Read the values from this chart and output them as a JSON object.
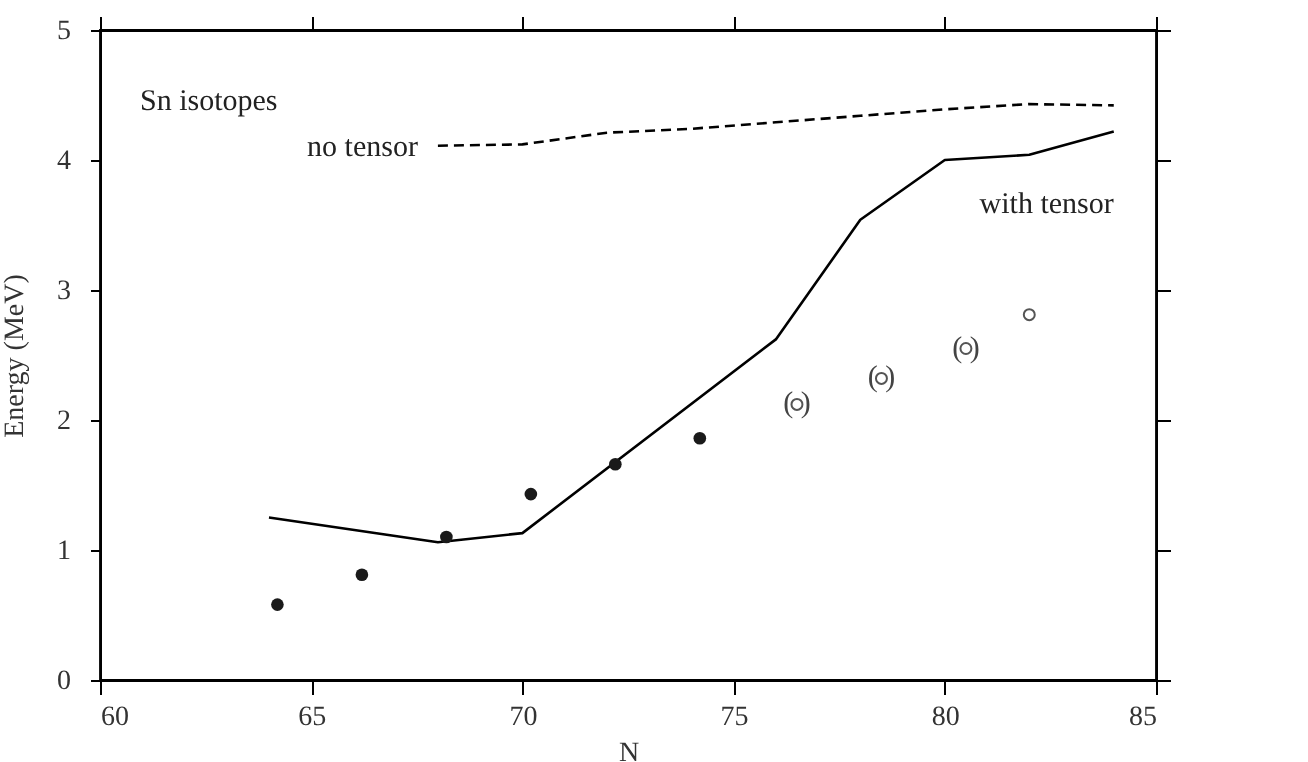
{
  "chart_data": {
    "type": "line",
    "xlabel": "N",
    "ylabel": "Energy (MeV)",
    "xlim": [
      60,
      85
    ],
    "xticks": [
      60,
      65,
      70,
      75,
      80,
      85
    ],
    "ylim": [
      0,
      5
    ],
    "yticks": [
      0,
      1,
      2,
      3,
      4,
      5
    ],
    "grid": false,
    "series": [
      {
        "name": "no tensor",
        "line_style": "dashed",
        "color": "#000000",
        "x": [
          68,
          70,
          72,
          74,
          76,
          78,
          80,
          82,
          84
        ],
        "values": [
          4.11,
          4.12,
          4.21,
          4.24,
          4.29,
          4.34,
          4.39,
          4.43,
          4.42
        ]
      },
      {
        "name": "with tensor",
        "line_style": "solid",
        "color": "#000000",
        "x": [
          64,
          68,
          70,
          76,
          78,
          80,
          82,
          84
        ],
        "values": [
          1.25,
          1.06,
          1.13,
          2.62,
          3.54,
          4.0,
          4.04,
          4.22
        ]
      },
      {
        "type": "scatter",
        "marker": "circle",
        "color": "#1a1a1a",
        "x": [
          64.2,
          66.2,
          68.2,
          70.2,
          72.2,
          74.2
        ],
        "values": [
          0.58,
          0.81,
          1.1,
          1.43,
          1.66,
          1.86
        ]
      },
      {
        "type": "scatter",
        "marker": "circle",
        "color": "#555555",
        "x": [
          76.5,
          78.5,
          80.5,
          82
        ],
        "values": [
          2.12,
          2.32,
          2.55,
          2.81
        ]
      }
    ],
    "annotations": [
      "Sn isotopes",
      {
        "text": "(   )",
        "x": 76.5,
        "y": 2.12
      },
      {
        "text": "(   )",
        "x": 78.5,
        "y": 2.32
      },
      {
        "text": "(   )",
        "x": 80.5,
        "y": 2.55
      }
    ]
  }
}
